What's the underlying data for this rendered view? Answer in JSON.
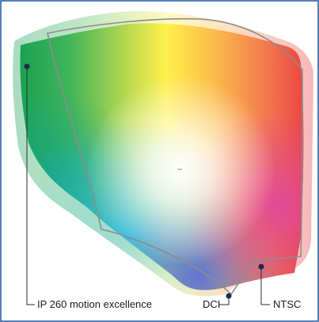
{
  "figure": {
    "labels": {
      "ip": "IP 260 motion excellence",
      "dci": "DCI",
      "ntsc": "NTSC"
    },
    "colors": {
      "border": "#2a5ea5",
      "leader": "#2b2b2b",
      "marker": "#1b2a52",
      "dci_outline": "#8c8c8c"
    }
  }
}
